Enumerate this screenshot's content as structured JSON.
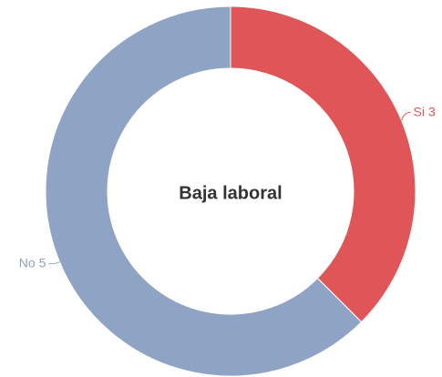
{
  "chart_data": {
    "type": "donut",
    "title": "Baja laboral",
    "categories": [
      "Si",
      "No"
    ],
    "values": [
      3,
      5
    ],
    "colors": [
      "#e05557",
      "#8fa3c4"
    ]
  }
}
